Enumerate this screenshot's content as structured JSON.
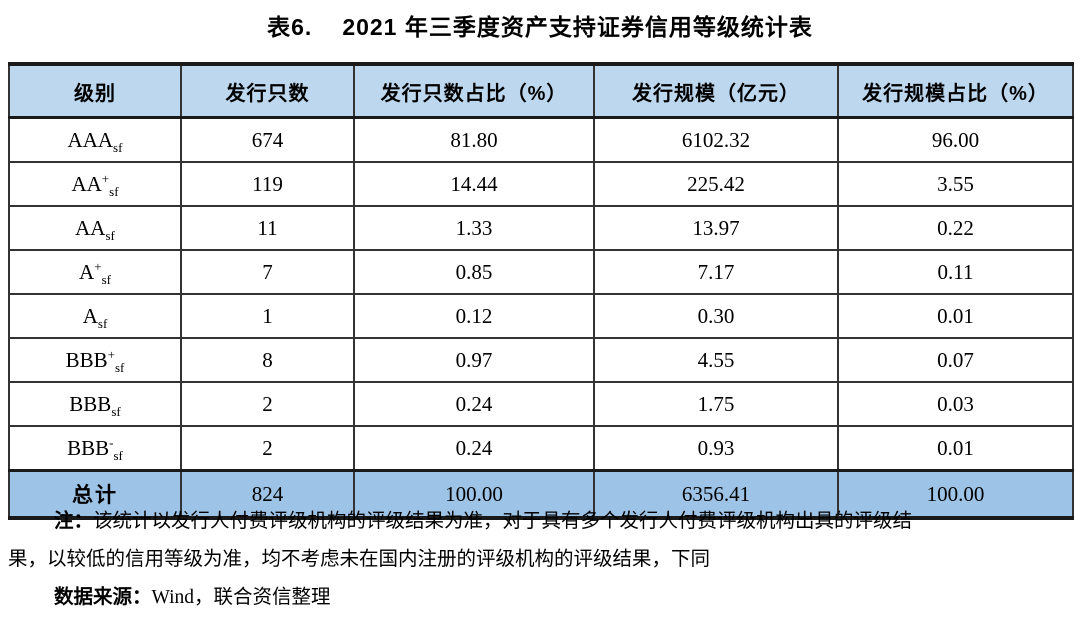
{
  "title": {
    "prefix": "表6.",
    "text": "2021 年三季度资产支持证券信用等级统计表"
  },
  "table": {
    "headers": [
      "级别",
      "发行只数",
      "发行只数占比（%）",
      "发行规模（亿元）",
      "发行规模占比（%）"
    ],
    "rows": [
      {
        "rating": {
          "base": "AAA",
          "sup": "",
          "sub": "sf"
        },
        "count": "674",
        "count_pct": "81.80",
        "scale": "6102.32",
        "scale_pct": "96.00"
      },
      {
        "rating": {
          "base": "AA",
          "sup": "+",
          "sub": "sf"
        },
        "count": "119",
        "count_pct": "14.44",
        "scale": "225.42",
        "scale_pct": "3.55"
      },
      {
        "rating": {
          "base": "AA",
          "sup": "",
          "sub": "sf"
        },
        "count": "11",
        "count_pct": "1.33",
        "scale": "13.97",
        "scale_pct": "0.22"
      },
      {
        "rating": {
          "base": "A",
          "sup": "+",
          "sub": "sf"
        },
        "count": "7",
        "count_pct": "0.85",
        "scale": "7.17",
        "scale_pct": "0.11"
      },
      {
        "rating": {
          "base": "A",
          "sup": "",
          "sub": "sf"
        },
        "count": "1",
        "count_pct": "0.12",
        "scale": "0.30",
        "scale_pct": "0.01"
      },
      {
        "rating": {
          "base": "BBB",
          "sup": "+",
          "sub": "sf"
        },
        "count": "8",
        "count_pct": "0.97",
        "scale": "4.55",
        "scale_pct": "0.07"
      },
      {
        "rating": {
          "base": "BBB",
          "sup": "",
          "sub": "sf"
        },
        "count": "2",
        "count_pct": "0.24",
        "scale": "1.75",
        "scale_pct": "0.03"
      },
      {
        "rating": {
          "base": "BBB",
          "sup": "-",
          "sub": "sf"
        },
        "count": "2",
        "count_pct": "0.24",
        "scale": "0.93",
        "scale_pct": "0.01"
      }
    ],
    "total": {
      "label": "总计",
      "count": "824",
      "count_pct": "100.00",
      "scale": "6356.41",
      "scale_pct": "100.00"
    }
  },
  "note": {
    "label": "注：",
    "line1": "该统计以发行人付费评级机构的评级结果为准，对于具有多个发行人付费评级机构出具的评级结",
    "line2": "果，以较低的信用等级为准，均不考虑未在国内注册的评级机构的评级结果，下同"
  },
  "source": {
    "label": "数据来源：",
    "text": "Wind，联合资信整理"
  },
  "colors": {
    "header_bg": "#bdd7ee",
    "total_bg": "#9dc3e6",
    "border_dark": "#1a1a1a",
    "border": "#333333",
    "text": "#000000"
  }
}
